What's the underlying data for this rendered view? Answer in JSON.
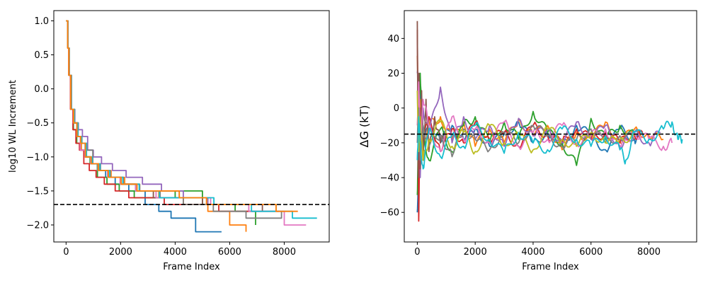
{
  "chart_data": [
    {
      "type": "line",
      "title": "",
      "xlabel": "Frame Index",
      "ylabel": "log10 WL Increment",
      "xlim": [
        -450,
        9650
      ],
      "ylim": [
        -2.25,
        1.15
      ],
      "xticks": [
        0,
        2000,
        4000,
        6000,
        8000
      ],
      "xtick_labels": [
        "0",
        "2000",
        "4000",
        "6000",
        "8000"
      ],
      "yticks": [
        1.0,
        0.5,
        0.0,
        -0.5,
        -1.0,
        -1.5,
        -2.0
      ],
      "ytick_labels": [
        "1.0",
        "0.5",
        "0.0",
        "−0.5",
        "−1.0",
        "−1.5",
        "−2.0"
      ],
      "grid": false,
      "reference_line": {
        "y": -1.7,
        "color": "#000000",
        "style": "dashed"
      },
      "series": [
        {
          "color": "#1f77b4",
          "x": [
            0,
            60,
            100,
            180,
            280,
            400,
            530,
            700,
            900,
            1150,
            1450,
            1800,
            2300,
            2900,
            3400,
            3850,
            4750,
            5700
          ],
          "y": [
            1.0,
            0.6,
            0.2,
            -0.3,
            -0.5,
            -0.7,
            -0.8,
            -1.0,
            -1.1,
            -1.2,
            -1.3,
            -1.4,
            -1.5,
            -1.7,
            -1.8,
            -1.9,
            -2.1,
            -2.1
          ]
        },
        {
          "color": "#ff7f0e",
          "x": [
            0,
            70,
            110,
            190,
            300,
            420,
            560,
            740,
            950,
            1250,
            1650,
            2150,
            2700,
            3400,
            4300,
            5200,
            6000,
            6600
          ],
          "y": [
            1.0,
            0.6,
            0.2,
            -0.3,
            -0.5,
            -0.7,
            -0.9,
            -1.0,
            -1.1,
            -1.2,
            -1.3,
            -1.4,
            -1.5,
            -1.6,
            -1.7,
            -1.8,
            -2.0,
            -2.1
          ]
        },
        {
          "color": "#2ca02c",
          "x": [
            0,
            60,
            105,
            170,
            270,
            390,
            520,
            690,
            880,
            1150,
            1500,
            1950,
            2500,
            3200,
            4000,
            5000,
            6200,
            6950
          ],
          "y": [
            1.0,
            0.6,
            0.2,
            -0.3,
            -0.6,
            -0.8,
            -0.9,
            -1.0,
            -1.1,
            -1.3,
            -1.4,
            -1.5,
            -1.6,
            -1.6,
            -1.5,
            -1.7,
            -1.8,
            -2.0
          ]
        },
        {
          "color": "#d62728",
          "x": [
            0,
            55,
            95,
            160,
            250,
            360,
            490,
            650,
            850,
            1100,
            1400,
            1800,
            2300,
            2900,
            3600,
            4400,
            5600,
            7800
          ],
          "y": [
            1.0,
            0.6,
            0.2,
            -0.3,
            -0.6,
            -0.8,
            -0.9,
            -1.1,
            -1.2,
            -1.3,
            -1.4,
            -1.5,
            -1.6,
            -1.6,
            -1.7,
            -1.7,
            -1.8,
            -1.8
          ]
        },
        {
          "color": "#9467bd",
          "x": [
            0,
            60,
            110,
            200,
            320,
            450,
            600,
            790,
            1000,
            1300,
            1700,
            2200,
            2800,
            3500,
            4300,
            5200,
            6200,
            7500
          ],
          "y": [
            1.0,
            0.6,
            0.2,
            -0.3,
            -0.5,
            -0.6,
            -0.7,
            -0.9,
            -1.0,
            -1.1,
            -1.2,
            -1.3,
            -1.4,
            -1.5,
            -1.6,
            -1.7,
            -1.7,
            -1.7
          ]
        },
        {
          "color": "#8c564b",
          "x": [
            0,
            65,
            110,
            180,
            290,
            410,
            550,
            720,
            920,
            1200,
            1550,
            2000,
            2550,
            3200,
            4000,
            5000,
            6300,
            7200
          ],
          "y": [
            1.0,
            0.6,
            0.2,
            -0.3,
            -0.5,
            -0.7,
            -0.8,
            -1.0,
            -1.1,
            -1.2,
            -1.3,
            -1.4,
            -1.5,
            -1.6,
            -1.6,
            -1.7,
            -1.7,
            -1.8
          ]
        },
        {
          "color": "#e377c2",
          "x": [
            0,
            60,
            100,
            170,
            270,
            390,
            520,
            690,
            900,
            1170,
            1520,
            1980,
            2550,
            3300,
            4200,
            5300,
            6700,
            8000,
            8800
          ],
          "y": [
            1.0,
            0.6,
            0.2,
            -0.3,
            -0.5,
            -0.7,
            -0.9,
            -1.0,
            -1.1,
            -1.2,
            -1.3,
            -1.4,
            -1.5,
            -1.6,
            -1.6,
            -1.7,
            -1.8,
            -2.0,
            -2.0
          ]
        },
        {
          "color": "#7f7f7f",
          "x": [
            0,
            70,
            120,
            200,
            310,
            440,
            580,
            760,
            980,
            1260,
            1620,
            2100,
            2700,
            3450,
            4300,
            5400,
            6600,
            7900
          ],
          "y": [
            1.0,
            0.6,
            0.2,
            -0.3,
            -0.5,
            -0.7,
            -0.8,
            -0.9,
            -1.1,
            -1.2,
            -1.3,
            -1.4,
            -1.5,
            -1.6,
            -1.7,
            -1.8,
            -1.9,
            -1.8
          ]
        },
        {
          "color": "#bcbd22",
          "x": [
            0,
            60,
            100,
            175,
            280,
            400,
            540,
            710,
            920,
            1190,
            1550,
            2020,
            2600,
            3300,
            4150,
            5150,
            6400,
            7700
          ],
          "y": [
            1.0,
            0.6,
            0.2,
            -0.3,
            -0.5,
            -0.7,
            -0.8,
            -1.0,
            -1.1,
            -1.2,
            -1.3,
            -1.4,
            -1.5,
            -1.5,
            -1.6,
            -1.7,
            -1.7,
            -1.8
          ]
        },
        {
          "color": "#17becf",
          "x": [
            0,
            65,
            110,
            190,
            300,
            430,
            570,
            750,
            960,
            1240,
            1600,
            2080,
            2680,
            3420,
            4320,
            5420,
            6800,
            8300,
            9200
          ],
          "y": [
            1.0,
            0.6,
            0.2,
            -0.3,
            -0.5,
            -0.7,
            -0.8,
            -1.0,
            -1.1,
            -1.2,
            -1.3,
            -1.4,
            -1.5,
            -1.6,
            -1.6,
            -1.7,
            -1.8,
            -1.9,
            -1.9
          ]
        },
        {
          "color": "#ff7f0e",
          "x": [
            0,
            60,
            105,
            175,
            280,
            400,
            540,
            710,
            920,
            1190,
            1550,
            2020,
            2600,
            3300,
            4150,
            5150,
            6400,
            7700,
            8500
          ],
          "y": [
            1.0,
            0.6,
            0.2,
            -0.3,
            -0.5,
            -0.7,
            -0.8,
            -1.0,
            -1.1,
            -1.2,
            -1.3,
            -1.4,
            -1.5,
            -1.5,
            -1.6,
            -1.7,
            -1.7,
            -1.8,
            -1.8
          ]
        }
      ]
    },
    {
      "type": "line",
      "title": "",
      "xlabel": "Frame Index",
      "ylabel": "ΔG (kT)",
      "xlim": [
        -450,
        9650
      ],
      "ylim": [
        -77,
        56
      ],
      "xticks": [
        0,
        2000,
        4000,
        6000,
        8000
      ],
      "xtick_labels": [
        "0",
        "2000",
        "4000",
        "6000",
        "8000"
      ],
      "yticks": [
        40,
        20,
        0,
        -20,
        -40,
        -60
      ],
      "ytick_labels": [
        "40",
        "20",
        "0",
        "−20",
        "−40",
        "−60"
      ],
      "grid": false,
      "reference_line": {
        "y": -15,
        "color": "#000000",
        "style": "dashed"
      },
      "series": [
        {
          "color": "#1f77b4",
          "x": [
            0,
            50,
            100,
            200,
            400,
            800,
            1200,
            1600,
            2000,
            2500,
            3000,
            3500,
            4000,
            4500,
            5000,
            5500,
            6000,
            6500,
            7000,
            7500,
            7700
          ],
          "y": [
            -60,
            -30,
            10,
            -25,
            -5,
            -20,
            -10,
            -18,
            -12,
            -22,
            -15,
            -8,
            -20,
            -14,
            -22,
            -10,
            -16,
            -24,
            -12,
            -18,
            -15
          ]
        },
        {
          "color": "#ff7f0e",
          "x": [
            0,
            50,
            100,
            200,
            400,
            800,
            1200,
            1600,
            2000,
            2500,
            3000,
            3500,
            4000,
            4500,
            5000,
            5500,
            6000,
            6500,
            7000,
            7500,
            8000,
            8500
          ],
          "y": [
            30,
            -20,
            5,
            -30,
            -10,
            -5,
            -18,
            -8,
            -22,
            -12,
            -20,
            -6,
            -16,
            -10,
            -24,
            -14,
            -18,
            -8,
            -20,
            -12,
            -16,
            -18
          ]
        },
        {
          "color": "#2ca02c",
          "x": [
            0,
            50,
            100,
            200,
            400,
            800,
            1200,
            1600,
            2000,
            2500,
            3000,
            3500,
            4000,
            4500,
            5000,
            5500,
            6000,
            6500,
            7000,
            7500
          ],
          "y": [
            -50,
            -10,
            20,
            -15,
            -30,
            -12,
            -25,
            -10,
            -5,
            -20,
            -8,
            -18,
            -2,
            -14,
            -20,
            -33,
            -6,
            -18,
            -10,
            -16
          ]
        },
        {
          "color": "#d62728",
          "x": [
            0,
            50,
            100,
            200,
            400,
            800,
            1200,
            1600,
            2000,
            2500,
            3000,
            3500,
            4000,
            4500,
            5000,
            5500,
            6000,
            6500,
            7000,
            7500,
            7800
          ],
          "y": [
            45,
            -65,
            0,
            -20,
            -5,
            -25,
            -12,
            -20,
            -8,
            -18,
            -14,
            -22,
            -10,
            -16,
            -20,
            -12,
            -18,
            -14,
            -20,
            -15,
            -16
          ]
        },
        {
          "color": "#9467bd",
          "x": [
            0,
            50,
            100,
            200,
            400,
            800,
            1200,
            1600,
            2000,
            2500,
            3000,
            3500,
            4000,
            4500,
            5000,
            5500,
            6000,
            6500,
            7000,
            7500,
            8000,
            8400
          ],
          "y": [
            20,
            10,
            -40,
            0,
            -15,
            12,
            -20,
            -5,
            -18,
            -10,
            -22,
            -6,
            -16,
            -12,
            -20,
            -8,
            -18,
            -10,
            -22,
            -14,
            -20,
            -14
          ]
        },
        {
          "color": "#8c564b",
          "x": [
            0,
            30,
            60,
            100,
            150,
            200,
            300,
            400,
            600,
            800,
            1000
          ],
          "y": [
            50,
            -40,
            20,
            -35,
            10,
            -30,
            5,
            -25,
            -5,
            -20,
            -15
          ]
        },
        {
          "color": "#e377c2",
          "x": [
            0,
            50,
            100,
            200,
            400,
            800,
            1200,
            1600,
            2000,
            2500,
            3000,
            3500,
            4000,
            4500,
            5000,
            5500,
            6000,
            6500,
            7000,
            7500,
            8000,
            8500,
            8800
          ],
          "y": [
            -10,
            15,
            -20,
            5,
            -10,
            -25,
            -5,
            -18,
            -12,
            -20,
            -8,
            -22,
            -14,
            -18,
            -10,
            -20,
            -16,
            -12,
            -24,
            -14,
            -18,
            -22,
            -20
          ]
        },
        {
          "color": "#7f7f7f",
          "x": [
            0,
            50,
            100,
            200,
            400,
            800,
            1200,
            1600,
            2000,
            2500,
            3000,
            3500,
            4000,
            4500,
            5000,
            5500,
            6000,
            6500,
            7000,
            7500
          ],
          "y": [
            -20,
            0,
            -30,
            -10,
            -22,
            -15,
            -28,
            -12,
            -18,
            -24,
            -14,
            -20,
            -10,
            -16,
            -22,
            -18,
            -12,
            -20,
            -16,
            -18
          ]
        },
        {
          "color": "#bcbd22",
          "x": [
            0,
            50,
            100,
            200,
            400,
            800,
            1200,
            1600,
            2000,
            2500,
            3000,
            3500,
            4000,
            4500,
            5000,
            5500,
            6000,
            6500,
            7000,
            7500
          ],
          "y": [
            10,
            -25,
            -5,
            -30,
            -18,
            -8,
            -22,
            -14,
            -25,
            -10,
            -20,
            -16,
            -24,
            -12,
            -18,
            -22,
            -14,
            -20,
            -18,
            -16
          ]
        },
        {
          "color": "#17becf",
          "x": [
            0,
            50,
            100,
            200,
            400,
            800,
            1200,
            1600,
            2000,
            2500,
            3000,
            3500,
            4000,
            4500,
            5000,
            5500,
            6000,
            6500,
            7000,
            7200,
            7500,
            8000,
            8500,
            8800,
            9000,
            9150
          ],
          "y": [
            -30,
            -5,
            -20,
            -35,
            -12,
            -28,
            -16,
            -22,
            -10,
            -18,
            -26,
            -14,
            -20,
            -24,
            -12,
            -18,
            -22,
            -16,
            -24,
            -30,
            -14,
            -18,
            -12,
            -8,
            -18,
            -18
          ]
        }
      ]
    }
  ]
}
